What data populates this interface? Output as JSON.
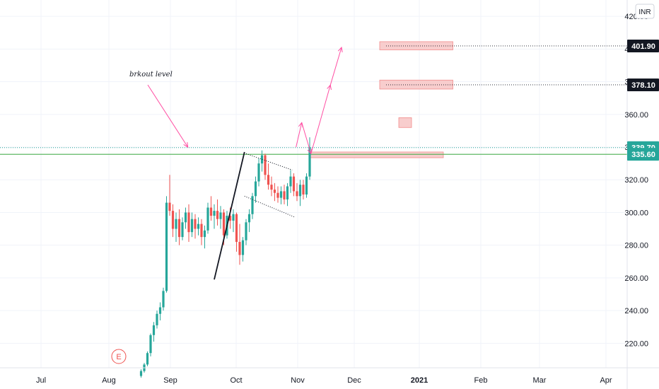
{
  "currency_badge": "INR",
  "annotation_text": "brkout level",
  "earnings_marker": "E",
  "colors": {
    "up": "#26a69a",
    "down": "#ef5350",
    "zone_fill": "#f8c8c8",
    "zone_stroke": "#f08080",
    "arrow": "#ff4fa3",
    "support": "#4caf50",
    "grid": "#f0f3fa",
    "dark": "#131722"
  },
  "chart_data": {
    "type": "candlestick",
    "ylim": [
      205,
      430
    ],
    "y_ticks": [
      "220.00",
      "240.00",
      "260.00",
      "280.00",
      "300.00",
      "320.00",
      "340.00",
      "360.00",
      "380.00",
      "400.00",
      "420.00"
    ],
    "x_ticks": [
      {
        "label": "Jul",
        "bold": false
      },
      {
        "label": "Aug",
        "bold": false
      },
      {
        "label": "Sep",
        "bold": false
      },
      {
        "label": "Oct",
        "bold": false
      },
      {
        "label": "Nov",
        "bold": false
      },
      {
        "label": "Dec",
        "bold": false
      },
      {
        "label": "2021",
        "bold": true
      },
      {
        "label": "Feb",
        "bold": false
      },
      {
        "label": "Mar",
        "bold": false
      },
      {
        "label": "Apr",
        "bold": false
      }
    ],
    "price_labels": [
      {
        "value": 401.9,
        "text": "401.90",
        "style": "dark"
      },
      {
        "value": 378.1,
        "text": "378.10",
        "style": "dark"
      },
      {
        "value": 339.7,
        "text": "339.70",
        "style": "green"
      },
      {
        "value": 335.6,
        "text": "335.60",
        "style": "green"
      }
    ],
    "candles": [
      [
        200,
        204,
        199,
        203
      ],
      [
        203,
        208,
        202,
        207
      ],
      [
        207,
        215,
        206,
        214
      ],
      [
        214,
        226,
        212,
        225
      ],
      [
        225,
        233,
        221,
        231
      ],
      [
        231,
        240,
        229,
        238
      ],
      [
        238,
        245,
        234,
        242
      ],
      [
        242,
        254,
        240,
        252
      ],
      [
        252,
        310,
        251,
        306
      ],
      [
        306,
        323,
        298,
        301
      ],
      [
        301,
        305,
        285,
        290
      ],
      [
        290,
        300,
        282,
        296
      ],
      [
        296,
        302,
        280,
        285
      ],
      [
        285,
        297,
        283,
        294
      ],
      [
        294,
        303,
        290,
        300
      ],
      [
        300,
        305,
        282,
        288
      ],
      [
        288,
        300,
        285,
        296
      ],
      [
        296,
        299,
        284,
        290
      ],
      [
        290,
        297,
        286,
        293
      ],
      [
        293,
        296,
        280,
        285
      ],
      [
        285,
        292,
        278,
        289
      ],
      [
        289,
        306,
        287,
        303
      ],
      [
        303,
        310,
        295,
        298
      ],
      [
        298,
        305,
        290,
        301
      ],
      [
        301,
        308,
        292,
        296
      ],
      [
        296,
        304,
        290,
        300
      ],
      [
        300,
        302,
        280,
        286
      ],
      [
        286,
        301,
        284,
        298
      ],
      [
        298,
        303,
        290,
        295
      ],
      [
        295,
        302,
        288,
        299
      ],
      [
        299,
        300,
        276,
        282
      ],
      [
        282,
        293,
        268,
        274
      ],
      [
        274,
        285,
        270,
        283
      ],
      [
        283,
        296,
        280,
        294
      ],
      [
        294,
        302,
        288,
        299
      ],
      [
        299,
        312,
        296,
        310
      ],
      [
        310,
        322,
        306,
        319
      ],
      [
        319,
        333,
        316,
        330
      ],
      [
        330,
        338,
        325,
        335
      ],
      [
        335,
        336,
        320,
        323
      ],
      [
        323,
        330,
        314,
        317
      ],
      [
        317,
        322,
        310,
        314
      ],
      [
        314,
        318,
        307,
        312
      ],
      [
        312,
        316,
        306,
        309
      ],
      [
        309,
        316,
        305,
        313
      ],
      [
        313,
        317,
        305,
        308
      ],
      [
        308,
        318,
        304,
        316
      ],
      [
        316,
        326,
        312,
        322
      ],
      [
        322,
        324,
        310,
        313
      ],
      [
        313,
        318,
        307,
        310
      ],
      [
        310,
        320,
        304,
        317
      ],
      [
        317,
        320,
        308,
        311
      ],
      [
        311,
        324,
        309,
        322
      ],
      [
        322,
        346,
        320,
        340
      ]
    ],
    "zones": [
      {
        "top": 337,
        "bottom": 333.5,
        "x_from": 53,
        "x_to": 95
      },
      {
        "top": 358,
        "bottom": 352,
        "x_from": 81,
        "x_to": 85
      },
      {
        "top": 381,
        "bottom": 375.5,
        "x_from": 75,
        "x_to": 98
      },
      {
        "top": 404.5,
        "bottom": 399.5,
        "x_from": 75,
        "x_to": 98
      }
    ],
    "support_price": 335.6,
    "last_price": 339.7,
    "target_lines": [
      {
        "value": 378.1,
        "x_from": 77
      },
      {
        "value": 401.9,
        "x_from": 77
      }
    ]
  }
}
